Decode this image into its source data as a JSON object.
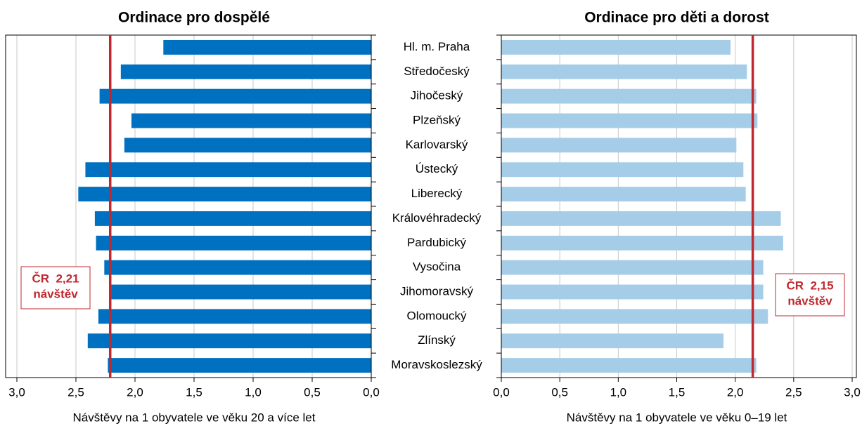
{
  "chart_data": [
    {
      "type": "barh",
      "title": "Ordinace pro dospělé",
      "x_label": "Návštěvy na 1 obyvatele ve věku 20 a více let",
      "categories": [
        "Hl. m. Praha",
        "Středočeský",
        "Jihočeský",
        "Plzeňský",
        "Karlovarský",
        "Ústecký",
        "Liberecký",
        "Královéhradecký",
        "Pardubický",
        "Vysočina",
        "Jihomoravský",
        "Olomoucký",
        "Zlínský",
        "Moravskoslezský"
      ],
      "values": [
        1.76,
        2.12,
        2.3,
        2.03,
        2.09,
        2.42,
        2.48,
        2.34,
        2.33,
        2.26,
        2.2,
        2.31,
        2.4,
        2.23
      ],
      "color": "#0070c0",
      "x_reversed": true,
      "xlim": [
        0,
        3
      ],
      "xticks": [
        {
          "value": 0,
          "label": "0,0"
        },
        {
          "value": 0.5,
          "label": "0,5"
        },
        {
          "value": 1,
          "label": "1,0"
        },
        {
          "value": 1.5,
          "label": "1,5"
        },
        {
          "value": 2,
          "label": "2,0"
        },
        {
          "value": 2.5,
          "label": "2,5"
        },
        {
          "value": 3,
          "label": "3,0"
        }
      ],
      "grid": true,
      "reference_line": {
        "value": 2.21,
        "color": "#c0282f",
        "annotation": [
          "ČR  2,21",
          "návštěv"
        ]
      }
    },
    {
      "type": "barh",
      "title": "Ordinace pro děti a dorost",
      "x_label": "Návštěvy na 1 obyvatele ve věku 0–19 let",
      "values": [
        1.96,
        2.1,
        2.18,
        2.19,
        2.01,
        2.07,
        2.09,
        2.39,
        2.41,
        2.24,
        2.24,
        2.28,
        1.9,
        2.18
      ],
      "color": "#a6cde8",
      "x_reversed": false,
      "xlim": [
        0,
        3
      ],
      "xticks": [
        {
          "value": 0,
          "label": "0,0"
        },
        {
          "value": 0.5,
          "label": "0,5"
        },
        {
          "value": 1,
          "label": "1,0"
        },
        {
          "value": 1.5,
          "label": "1,5"
        },
        {
          "value": 2,
          "label": "2,0"
        },
        {
          "value": 2.5,
          "label": "2,5"
        },
        {
          "value": 3,
          "label": "3,0"
        }
      ],
      "grid": true,
      "reference_line": {
        "value": 2.15,
        "color": "#c0282f",
        "annotation": [
          "ČR  2,15",
          "návštěv"
        ]
      }
    }
  ]
}
